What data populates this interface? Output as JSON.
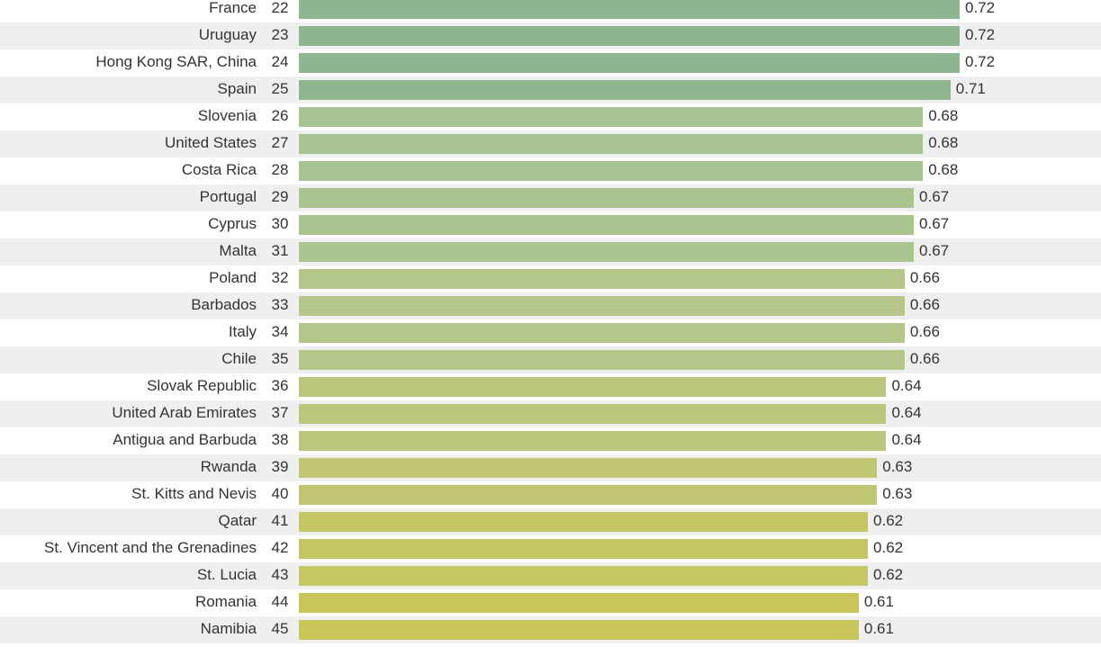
{
  "chart_data": {
    "type": "bar",
    "orientation": "horizontal",
    "categories": [
      "France",
      "Uruguay",
      "Hong Kong SAR, China",
      "Spain",
      "Slovenia",
      "United States",
      "Costa Rica",
      "Portugal",
      "Cyprus",
      "Malta",
      "Poland",
      "Barbados",
      "Italy",
      "Chile",
      "Slovak Republic",
      "United Arab Emirates",
      "Antigua and Barbuda",
      "Rwanda",
      "St. Kitts and Nevis",
      "Qatar",
      "St. Vincent and the Grenadines",
      "St. Lucia",
      "Romania",
      "Namibia"
    ],
    "ranks": [
      "22",
      "23",
      "24",
      "25",
      "26",
      "27",
      "28",
      "29",
      "30",
      "31",
      "32",
      "33",
      "34",
      "35",
      "36",
      "37",
      "38",
      "39",
      "40",
      "41",
      "42",
      "43",
      "44",
      "45"
    ],
    "values": [
      0.72,
      0.72,
      0.72,
      0.71,
      0.68,
      0.68,
      0.68,
      0.67,
      0.67,
      0.67,
      0.66,
      0.66,
      0.66,
      0.66,
      0.64,
      0.64,
      0.64,
      0.63,
      0.63,
      0.62,
      0.62,
      0.62,
      0.61,
      0.61
    ],
    "value_labels": [
      "0.72",
      "0.72",
      "0.72",
      "0.71",
      "0.68",
      "0.68",
      "0.68",
      "0.67",
      "0.67",
      "0.67",
      "0.66",
      "0.66",
      "0.66",
      "0.66",
      "0.64",
      "0.64",
      "0.64",
      "0.63",
      "0.63",
      "0.62",
      "0.62",
      "0.62",
      "0.61",
      "0.61"
    ],
    "colors": [
      "#8db58e",
      "#8db58e",
      "#8db58e",
      "#8db58e",
      "#a8c392",
      "#a8c392",
      "#a8c392",
      "#aac48f",
      "#aac48f",
      "#aac48f",
      "#b4c689",
      "#b4c689",
      "#b4c689",
      "#b4c689",
      "#bcc67c",
      "#bcc67c",
      "#bcc67c",
      "#c0c673",
      "#c0c673",
      "#c6c662",
      "#c6c662",
      "#c6c662",
      "#c8c65a",
      "#c8c65a"
    ],
    "xlim": [
      0,
      1
    ],
    "grid": false,
    "title": "",
    "xlabel": "",
    "ylabel": ""
  }
}
